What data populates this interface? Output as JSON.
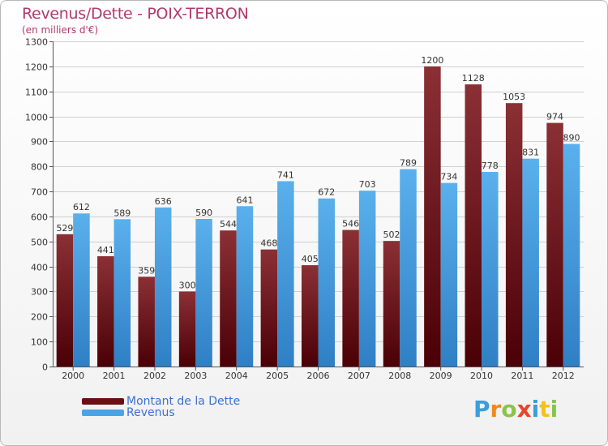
{
  "header": {
    "title": "Revenus/Dette - POIX-TERRON",
    "subtitle": "(en milliers d'€)"
  },
  "legend": {
    "items": [
      {
        "label": "Montant de la Dette",
        "color": "#6b0f12"
      },
      {
        "label": "Revenus",
        "color": "#4aa3e6"
      }
    ]
  },
  "logo": {
    "letters": [
      "P",
      "r",
      "o",
      "x",
      "i",
      "t",
      "i"
    ],
    "colors": [
      "#3a9edb",
      "#f08a1c",
      "#8bc34a",
      "#e8452c",
      "#3a9edb",
      "#f2c21b",
      "#8bc34a"
    ]
  },
  "chart_data": {
    "type": "bar",
    "title": "Revenus/Dette - POIX-TERRON",
    "subtitle": "(en milliers d'€)",
    "xlabel": "",
    "ylabel": "",
    "ylim": [
      0,
      1300
    ],
    "ytick_step": 100,
    "grid": "horizontal",
    "legend_position": "bottom-left",
    "categories": [
      "2000",
      "2001",
      "2002",
      "2003",
      "2004",
      "2005",
      "2006",
      "2007",
      "2008",
      "2009",
      "2010",
      "2011",
      "2012"
    ],
    "series": [
      {
        "name": "Montant de la Dette",
        "color_top": "#8b3035",
        "color_bottom": "#4a0006",
        "values": [
          529,
          441,
          359,
          300,
          544,
          468,
          405,
          546,
          502,
          1200,
          1128,
          1053,
          974
        ]
      },
      {
        "name": "Revenus",
        "color_top": "#5ab0ec",
        "color_bottom": "#2f7fc4",
        "values": [
          612,
          589,
          636,
          590,
          641,
          741,
          672,
          703,
          789,
          734,
          778,
          831,
          890
        ]
      }
    ]
  }
}
